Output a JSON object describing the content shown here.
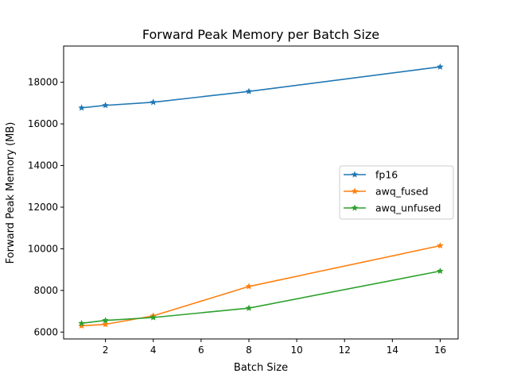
{
  "chart_data": {
    "type": "line",
    "title": "Forward Peak Memory per Batch Size",
    "xlabel": "Batch Size",
    "ylabel": "Forward Peak Memory (MB)",
    "x": [
      1,
      2,
      4,
      8,
      16
    ],
    "xticks": [
      2,
      4,
      6,
      8,
      10,
      12,
      14,
      16
    ],
    "yticks": [
      6000,
      8000,
      10000,
      12000,
      14000,
      16000,
      18000
    ],
    "xlim": [
      0.25,
      16.75
    ],
    "ylim": [
      5670,
      19740
    ],
    "legend": "center-right",
    "grid": false,
    "series": [
      {
        "name": "fp16",
        "color": "#1f77b4",
        "values": [
          16770,
          16890,
          17040,
          17560,
          18740
        ]
      },
      {
        "name": "awq_fused",
        "color": "#ff7f0e",
        "values": [
          6300,
          6370,
          6780,
          8190,
          10150
        ]
      },
      {
        "name": "awq_unfused",
        "color": "#2ca02c",
        "values": [
          6420,
          6560,
          6700,
          7150,
          8930
        ]
      }
    ]
  }
}
